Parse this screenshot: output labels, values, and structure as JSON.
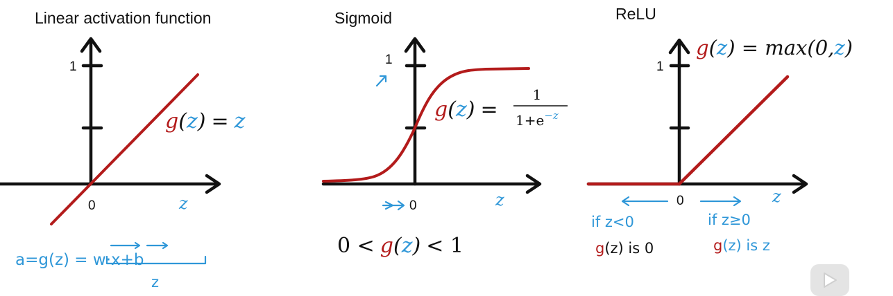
{
  "panels": {
    "linear": {
      "title": "Linear activation function",
      "y_tick": "1",
      "origin": "0",
      "x_label": "z",
      "func_g": "g",
      "func_open": "(",
      "func_z": "z",
      "func_close": ")",
      "func_eq": "=",
      "func_rhs": "z",
      "note_eq": "a=g(z) = w·x+b",
      "note_under": "z"
    },
    "sigmoid": {
      "title": "Sigmoid",
      "y_tick": "1",
      "origin": "0",
      "x_label": "z",
      "func_g": "g",
      "func_open": "(",
      "func_z": "z",
      "func_close": ")",
      "func_eq": "=",
      "frac_num": "1",
      "frac_den_base": "1+e",
      "frac_den_exp": "−z",
      "range_left": "0 <",
      "range_g": "g",
      "range_open": "(",
      "range_z": "z",
      "range_close": ")",
      "range_right": "< 1"
    },
    "relu": {
      "title": "ReLU",
      "y_tick": "1",
      "origin": "0",
      "x_label": "z",
      "func_g": "g",
      "func_open": "(",
      "func_z": "z",
      "func_mid": ") = max(0,",
      "func_z2": "z",
      "func_close": ")",
      "left_cond": "if z<0",
      "right_cond": "if z≥0",
      "left_out_g": "g",
      "left_out_rest": "(z) is 0",
      "right_out_g": "g",
      "right_out_rest": "(z) is z"
    }
  },
  "colors": {
    "red": "#b31b1b",
    "blue": "#2f97d8",
    "axis": "#111111"
  },
  "icons": {
    "play": "play-icon"
  }
}
